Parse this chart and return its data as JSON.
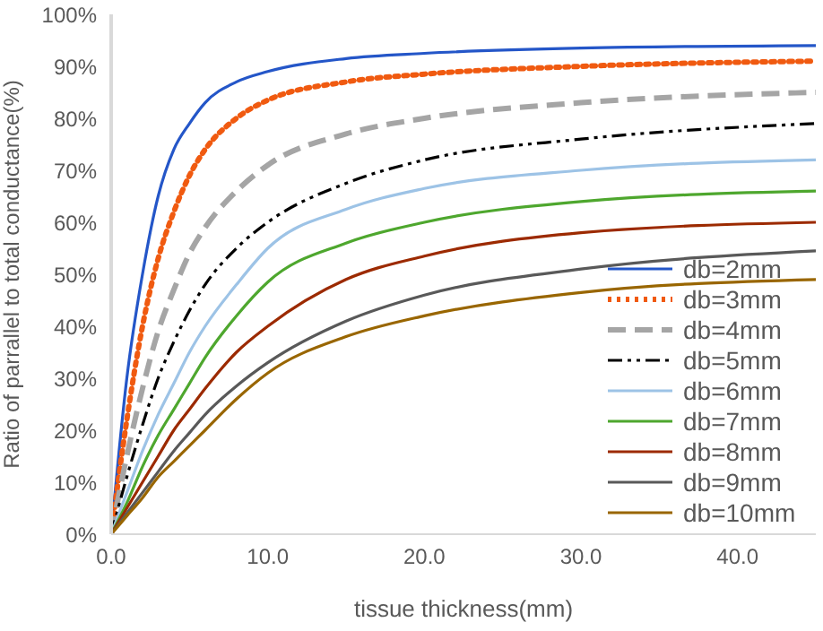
{
  "chart_data": {
    "type": "line",
    "xlabel": "tissue thickness(mm)",
    "ylabel": "Ratio of parrallel to total conductance(%)",
    "x": [
      0,
      1,
      2,
      3,
      4,
      5,
      6,
      8,
      10,
      15,
      20,
      30,
      45
    ],
    "series": [
      {
        "name": "db=2mm",
        "color": "#2456c8",
        "line_style": "solid",
        "values": [
          0,
          30,
          50,
          65,
          74,
          79,
          83,
          87,
          89,
          91.5,
          92.5,
          93.5,
          94
        ]
      },
      {
        "name": "db=3mm",
        "color": "#f05a10",
        "line_style": "dotted",
        "values": [
          0,
          22,
          40,
          53,
          62,
          69,
          74,
          80,
          83.5,
          87,
          88.5,
          90,
          91
        ]
      },
      {
        "name": "db=4mm",
        "color": "#a5a5a5",
        "line_style": "dashed",
        "values": [
          0,
          15,
          28,
          39,
          47,
          54,
          59,
          66,
          71,
          77,
          80,
          83,
          85
        ]
      },
      {
        "name": "db=5mm",
        "color": "#000000",
        "line_style": "dashdot",
        "values": [
          0,
          11,
          21,
          30,
          37,
          43,
          48,
          55,
          60,
          67.5,
          72,
          76,
          79
        ]
      },
      {
        "name": "db=6mm",
        "color": "#9dc3e6",
        "line_style": "solid",
        "values": [
          0,
          8,
          16,
          23,
          29,
          35,
          40,
          48,
          55,
          62.5,
          66.5,
          70,
          72
        ]
      },
      {
        "name": "db=7mm",
        "color": "#4ea72e",
        "line_style": "solid",
        "values": [
          0,
          6,
          13,
          19,
          24,
          29,
          34,
          42,
          48.5,
          56,
          60,
          64,
          66
        ]
      },
      {
        "name": "db=8mm",
        "color": "#9c2a00",
        "line_style": "solid",
        "values": [
          0,
          5,
          10,
          15,
          20,
          24,
          28,
          35,
          40,
          49,
          53.5,
          58,
          60
        ]
      },
      {
        "name": "db=9mm",
        "color": "#595959",
        "line_style": "solid",
        "values": [
          0,
          4,
          8,
          12,
          16,
          19.5,
          23,
          28.5,
          33,
          41,
          46,
          51,
          54.5
        ]
      },
      {
        "name": "db=10mm",
        "color": "#996600",
        "line_style": "solid",
        "values": [
          0,
          3.5,
          7,
          11,
          14,
          17,
          20,
          26,
          31,
          38,
          42,
          46.5,
          49
        ]
      }
    ],
    "xlim": [
      0,
      45
    ],
    "xticks": [
      {
        "value": 0,
        "label": "0.0"
      },
      {
        "value": 10,
        "label": "10.0"
      },
      {
        "value": 20,
        "label": "20.0"
      },
      {
        "value": 30,
        "label": "30.0"
      },
      {
        "value": 40,
        "label": "40.0"
      }
    ],
    "ylim": [
      0,
      100
    ],
    "yticks": [
      {
        "value": 0,
        "label": "0%"
      },
      {
        "value": 10,
        "label": "10%"
      },
      {
        "value": 20,
        "label": "20%"
      },
      {
        "value": 30,
        "label": "30%"
      },
      {
        "value": 40,
        "label": "40%"
      },
      {
        "value": 50,
        "label": "50%"
      },
      {
        "value": 60,
        "label": "60%"
      },
      {
        "value": 70,
        "label": "70%"
      },
      {
        "value": 80,
        "label": "80%"
      },
      {
        "value": 90,
        "label": "90%"
      },
      {
        "value": 100,
        "label": "100%"
      }
    ],
    "grid": false,
    "legend": "bottom right",
    "marker": "none"
  }
}
